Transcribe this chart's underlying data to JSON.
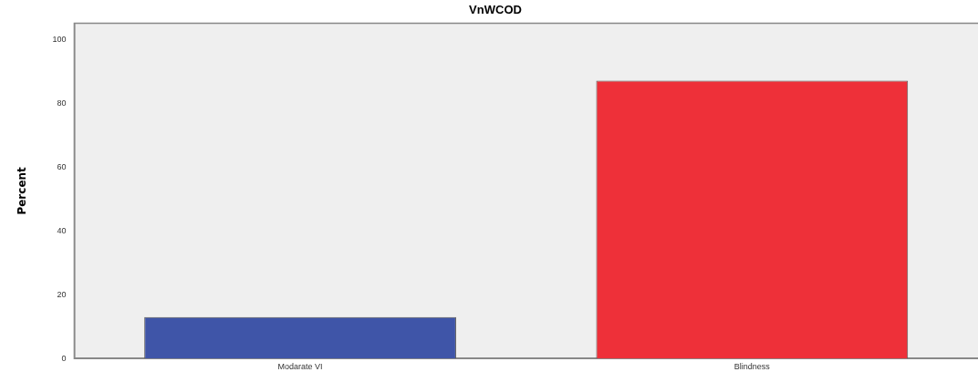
{
  "chart_data": {
    "type": "bar",
    "title": "VnWCOD",
    "ylabel": "Percent",
    "categories": [
      "Modarate VI",
      "Blindness"
    ],
    "values": [
      13,
      87
    ],
    "colors": [
      "#3f55a8",
      "#ee3039"
    ],
    "ylim": [
      0,
      105
    ],
    "yticks": [
      0,
      20,
      40,
      60,
      80,
      100
    ],
    "grid": false,
    "legend": false
  }
}
